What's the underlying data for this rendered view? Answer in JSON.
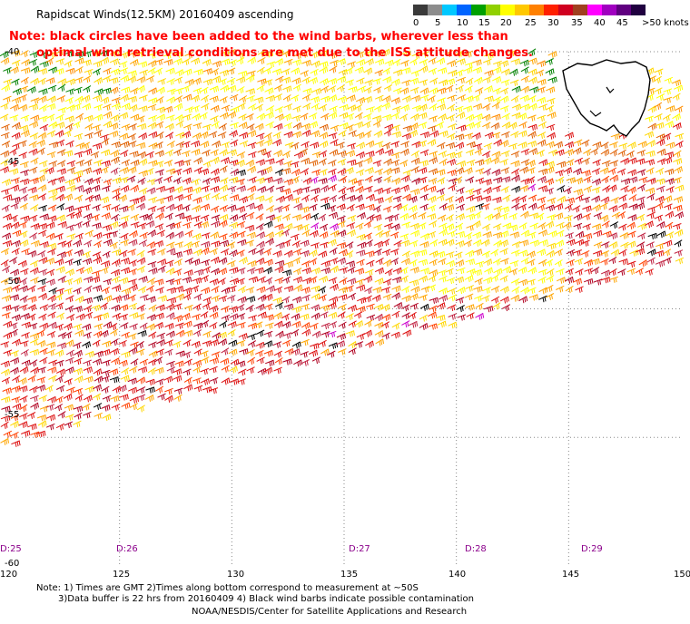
{
  "header": {
    "title": "Rapidscat Winds(12.5KM) 20160409 ascending",
    "note_line1": "Note: black circles have been added to the wind barbs, wherever less than",
    "note_line2": "optimal wind retrieval conditions are met due to the ISS attitude changes."
  },
  "colorbar": {
    "labels": [
      "0",
      "5",
      "10",
      "15",
      "20",
      "25",
      "30",
      "35",
      "40",
      "45",
      ">50 knots"
    ],
    "colors": [
      "#3a3a3a",
      "#8c8c8c",
      "#00c8ff",
      "#0064ff",
      "#00a000",
      "#90d000",
      "#ffff00",
      "#ffc800",
      "#ff8000",
      "#ff2000",
      "#d00020",
      "#a04020",
      "#ff00ff",
      "#a000c0",
      "#600080",
      "#200040"
    ]
  },
  "map": {
    "lon_labels": [
      "120",
      "125",
      "130",
      "135",
      "140",
      "145",
      "150"
    ],
    "lat_labels": [
      "-40",
      "-45",
      "-50",
      "-55",
      "-60"
    ],
    "time_labels": [
      "D:25",
      "D:26",
      "D:27",
      "D:28",
      "D:29"
    ],
    "landmass": "Tasmania",
    "barb_colors": [
      "#ffff00",
      "#ffd700",
      "#ffa500",
      "#ff8c00",
      "#e06000",
      "#ff4000",
      "#dd1010",
      "#b00020",
      "#c02040",
      "#008000",
      "#000000",
      "#cc00cc"
    ]
  },
  "footer": {
    "note1": "Note: 1) Times are GMT 2)Times along bottom correspond to measurement at ~50S",
    "note2": "3)Data buffer is 22 hrs from 20160409 4) Black wind barbs indicate possible contamination",
    "credit": "NOAA/NESDIS/Center for Satellite Applications and Research"
  }
}
